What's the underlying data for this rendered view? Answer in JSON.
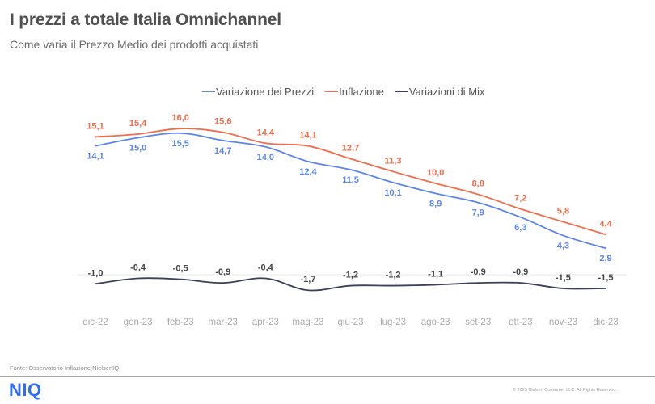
{
  "header": {
    "title": "I prezzi a totale Italia Omnichannel",
    "subtitle": "Come varia il Prezzo  Medio dei prodotti acquistati"
  },
  "legend": [
    {
      "label": "Variazione dei Prezzi",
      "color": "#5b84f0"
    },
    {
      "label": "Inflazione",
      "color": "#f26b4b"
    },
    {
      "label": "Variazioni di Mix",
      "color": "#3d3f5c"
    }
  ],
  "chart_data": {
    "type": "line",
    "title": "I prezzi a totale Italia Omnichannel",
    "subtitle": "Come varia il Prezzo  Medio dei prodotti acquistati",
    "xlabel": "",
    "ylabel": "",
    "categories": [
      "dic-22",
      "gen-23",
      "feb-23",
      "mar-23",
      "apr-23",
      "mag-23",
      "giu-23",
      "lug-23",
      "ago-23",
      "set-23",
      "ott-23",
      "nov-23",
      "dic-23"
    ],
    "series": [
      {
        "name": "Variazione dei Prezzi",
        "color": "#5b84f0",
        "label_position": "below",
        "values": [
          14.1,
          15.0,
          15.5,
          14.7,
          14.0,
          12.4,
          11.5,
          10.1,
          8.9,
          7.9,
          6.3,
          4.3,
          2.9
        ]
      },
      {
        "name": "Inflazione",
        "color": "#f26b4b",
        "label_position": "above",
        "values": [
          15.1,
          15.4,
          16.0,
          15.6,
          14.4,
          14.1,
          12.7,
          11.3,
          10.0,
          8.8,
          7.2,
          5.8,
          4.4
        ]
      },
      {
        "name": "Variazioni di Mix",
        "color": "#3d3f5c",
        "label_position": "above",
        "values": [
          -1.0,
          -0.4,
          -0.5,
          -0.9,
          -0.4,
          -1.7,
          -1.2,
          -1.2,
          -1.1,
          -0.9,
          -0.9,
          -1.5,
          -1.5
        ]
      }
    ],
    "ylim": [
      -2,
      17
    ],
    "grid": false,
    "zero_line": true,
    "smooth": true,
    "legend_position": "top-right",
    "decimal_separator": ","
  },
  "footer": {
    "source": "Fonte: Osservatorio Inflazione NielsenIQ",
    "logo": "NIQ",
    "copyright": "© 2023 Nielsen Consumer LLC. All Rights Reserved."
  }
}
